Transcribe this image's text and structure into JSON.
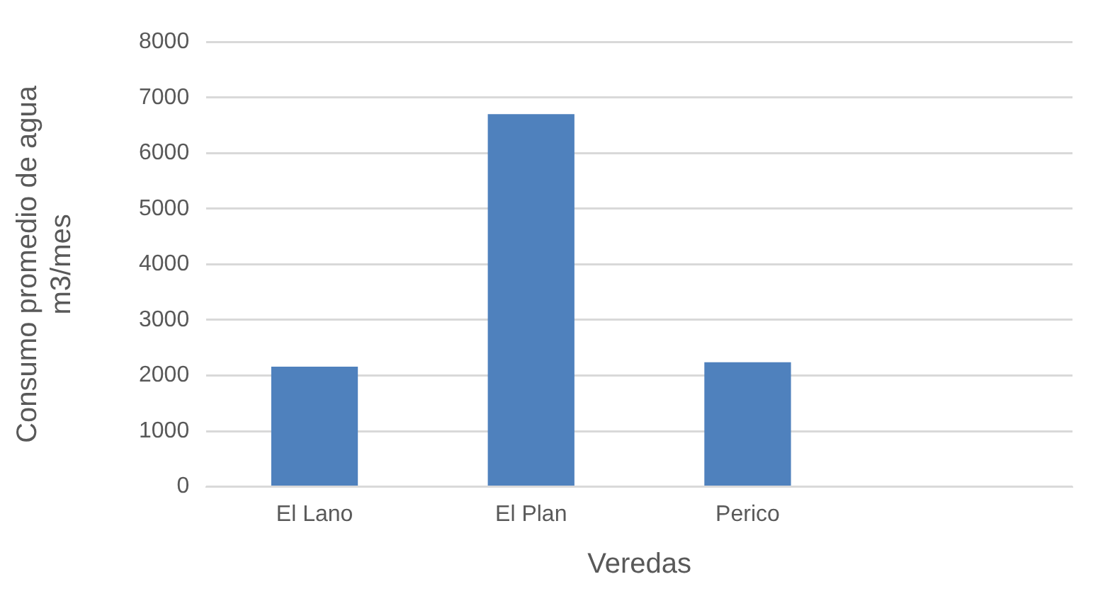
{
  "chart_data": {
    "type": "bar",
    "xlabel": "Veredas",
    "ylabel": "Consumo promedio de agua m3/mes",
    "categories": [
      "El Lano",
      "El Plan",
      "Perico",
      null
    ],
    "values": [
      2160,
      6700,
      2240,
      null
    ],
    "color": "#4f81bd",
    "ylim": [
      0,
      8000
    ],
    "yticks": [
      0,
      1000,
      2000,
      3000,
      4000,
      5000,
      6000,
      7000,
      8000
    ],
    "grid": "y"
  }
}
